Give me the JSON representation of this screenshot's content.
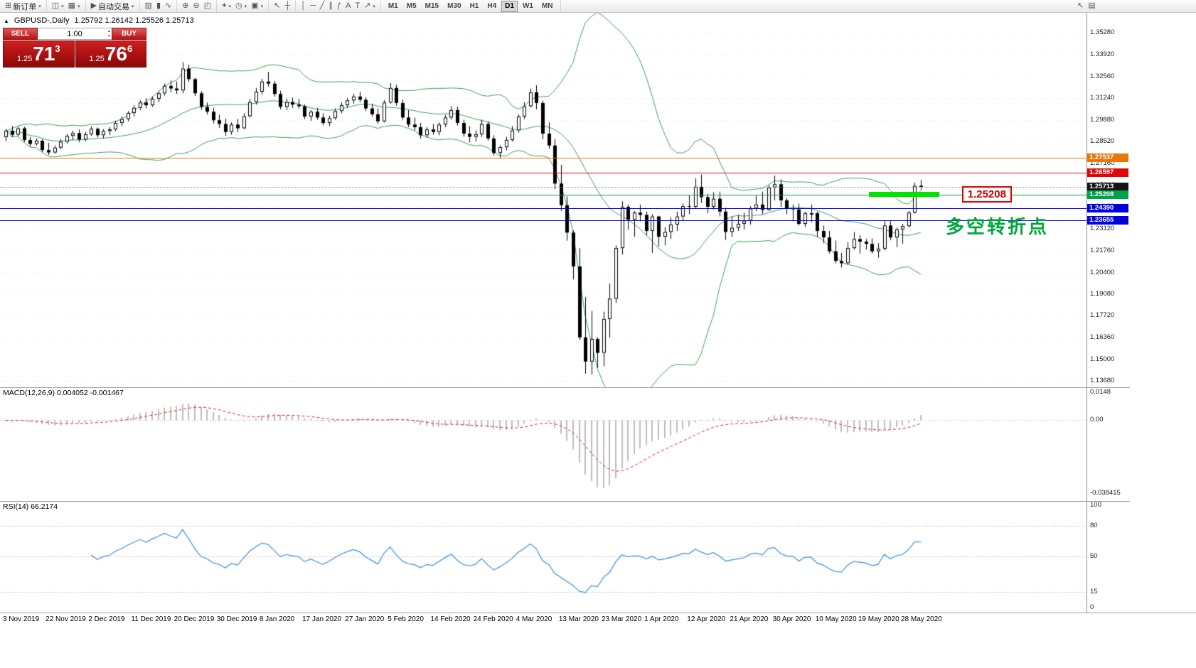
{
  "toolbar": {
    "groups": [
      {
        "name": "order-group",
        "items": [
          {
            "name": "new-order-button",
            "icon": "new-order-icon",
            "label": "新订单",
            "caret": true
          }
        ]
      },
      {
        "name": "window-group",
        "items": [
          {
            "name": "new-chart-button",
            "icon": "new-chart-icon",
            "caret": true
          },
          {
            "name": "profiles-button",
            "icon": "profiles-icon",
            "caret": true
          }
        ]
      },
      {
        "name": "autotrading-group",
        "items": [
          {
            "name": "autotrading-button",
            "icon": "autotrading-icon",
            "label": "自动交易",
            "caret": true
          }
        ]
      },
      {
        "name": "chart-type-group",
        "items": [
          {
            "name": "bar-chart-button",
            "icon": "bar-chart-icon"
          },
          {
            "name": "candlestick-button",
            "icon": "candlestick-icon"
          },
          {
            "name": "line-chart-button",
            "icon": "line-chart-icon"
          }
        ]
      },
      {
        "name": "zoom-group",
        "items": [
          {
            "name": "zoom-in-button",
            "icon": "zoom-in-icon"
          },
          {
            "name": "zoom-out-button",
            "icon": "zoom-out-icon"
          },
          {
            "name": "tile-windows-button",
            "icon": "tile-windows-icon"
          }
        ]
      },
      {
        "name": "insert-group",
        "items": [
          {
            "name": "indicators-button",
            "icon": "indicators-icon",
            "caret": true
          },
          {
            "name": "periods-button",
            "icon": "periods-icon",
            "caret": true
          },
          {
            "name": "templates-button",
            "icon": "templates-icon",
            "caret": true
          }
        ]
      },
      {
        "name": "cursor-group",
        "items": [
          {
            "name": "cursor-button",
            "icon": "cursor-icon"
          },
          {
            "name": "crosshair-button",
            "icon": "crosshair-icon"
          }
        ]
      },
      {
        "name": "draw-group",
        "items": [
          {
            "name": "vertical-line-button",
            "icon": "vline-icon"
          },
          {
            "name": "horizontal-line-button",
            "icon": "hline-icon"
          },
          {
            "name": "trendline-button",
            "icon": "trendline-icon"
          },
          {
            "name": "channel-button",
            "icon": "channel-icon"
          },
          {
            "name": "fibonacci-button",
            "icon": "fibonacci-icon"
          },
          {
            "name": "text-button",
            "icon": "text-icon"
          },
          {
            "name": "label-button",
            "icon": "label-icon"
          },
          {
            "name": "arrows-button",
            "icon": "arrows-icon",
            "caret": true
          }
        ]
      }
    ],
    "timeframes": {
      "items": [
        "M1",
        "M5",
        "M15",
        "M30",
        "H1",
        "H4",
        "D1",
        "W1",
        "MN"
      ],
      "active": "D1"
    },
    "right_items": [
      {
        "name": "help-pointer-button",
        "icon": "help-pointer-icon"
      },
      {
        "name": "snapshot-button",
        "icon": "camera-icon"
      }
    ]
  },
  "chart": {
    "title": {
      "symbol": "GBPUSD-,Daily",
      "ohlc": "1.25792 1.26142 1.25526 1.25713"
    },
    "one_click": {
      "sell_label": "SELL",
      "buy_label": "BUY",
      "volume": "1.00",
      "sell_price": {
        "int": "1.25",
        "big": "71",
        "sup": "3"
      },
      "buy_price": {
        "int": "1.25",
        "big": "76",
        "sup": "6"
      }
    },
    "x_labels": [
      "3 Nov 2019",
      "22 Nov 2019",
      "2 Dec 2019",
      "11 Dec 2019",
      "20 Dec 2019",
      "30 Dec 2019",
      "8 Jan 2020",
      "17 Jan 2020",
      "27 Jan 2020",
      "5 Feb 2020",
      "14 Feb 2020",
      "24 Feb 2020",
      "4 Mar 2020",
      "13 Mar 2020",
      "23 Mar 2020",
      "1 Apr 2020",
      "12 Apr 2020",
      "21 Apr 2020",
      "30 Apr 2020",
      "10 May 2020",
      "19 May 2020",
      "28 May 2020"
    ],
    "annotation": "多空转折点",
    "callout": "1.25208"
  },
  "macd": {
    "label": "MACD(12,26,9) 0.004052 -0.001467",
    "scale_labels": [
      {
        "v": 0.0148,
        "t": "0.0148"
      },
      {
        "v": 0,
        "t": "0.00"
      },
      {
        "v": -0.038415,
        "t": "-0.038415"
      }
    ]
  },
  "rsi": {
    "label": "RSI(14) 66.2174",
    "scale_labels": [
      {
        "v": 100,
        "t": "100"
      },
      {
        "v": 80,
        "t": "80"
      },
      {
        "v": 50,
        "t": "50"
      },
      {
        "v": 15,
        "t": "15"
      },
      {
        "v": 0,
        "t": "0"
      }
    ]
  },
  "chart_data": {
    "type": "candlestick",
    "symbol": "GBPUSD-",
    "timeframe": "Daily",
    "last_ohlc": {
      "open": 1.25792,
      "high": 1.26142,
      "low": 1.25526,
      "close": 1.25713
    },
    "y_range": [
      1.1368,
      1.3528
    ],
    "y_ticks": [
      1.3528,
      1.3392,
      1.3256,
      1.3124,
      1.2988,
      1.2852,
      1.2716,
      1.258,
      1.2448,
      1.2312,
      1.2176,
      1.204,
      1.1908,
      1.1772,
      1.1636,
      1.15,
      1.1368
    ],
    "overlays": [
      {
        "type": "bollinger_bands",
        "period": 20,
        "deviation": 2,
        "color": "#3c9e52"
      }
    ],
    "hlines": [
      {
        "name": "resistance-line-1",
        "price": 1.27537,
        "label": "1.27537",
        "color": "#e8780a",
        "tag_bg": "#e8780a",
        "style": "solid"
      },
      {
        "name": "resistance-line-2",
        "price": 1.26597,
        "label": "1.26597",
        "color": "#dd0808",
        "tag_bg": "#dd0808",
        "style": "solid"
      },
      {
        "name": "bid-price-line",
        "price": 1.25713,
        "label": "1.25713",
        "color": "#9a9a9a",
        "tag_bg": "#151515",
        "style": "dotted"
      },
      {
        "name": "support-line-green",
        "price": 1.25208,
        "label": "1.25208",
        "color": "#00a14b",
        "tag_bg": "#00a14b",
        "style": "solid"
      },
      {
        "name": "support-line-blue-1",
        "price": 1.2439,
        "label": "1.24390",
        "color": "#0000dd",
        "tag_bg": "#0000dd",
        "style": "solid"
      },
      {
        "name": "support-line-blue-2",
        "price": 1.23655,
        "label": "1.23655",
        "color": "#0000dd",
        "tag_bg": "#0000dd",
        "style": "solid"
      }
    ],
    "highlight_segment": {
      "price": 1.25208,
      "bar_start": 142,
      "bar_end": 153,
      "color": "#00e400"
    },
    "indicators": [
      {
        "type": "MACD",
        "fast": 12,
        "slow": 26,
        "signal": 9,
        "current_main": 0.004052,
        "current_signal": -0.001467,
        "scale": {
          "max": 0.0148,
          "min": -0.038415
        },
        "histogram_color": "#bdbdbd",
        "signal_color": "#e02020"
      },
      {
        "type": "RSI",
        "period": 14,
        "current": 66.2174,
        "levels": [
          80,
          50,
          15
        ],
        "scale": {
          "max": 100,
          "min": 0
        },
        "line_color": "#3a8fe0"
      }
    ],
    "candles": [
      [
        1.288,
        1.293,
        1.2855,
        1.292
      ],
      [
        1.292,
        1.295,
        1.288,
        1.2895
      ],
      [
        1.2895,
        1.2945,
        1.2885,
        1.2935
      ],
      [
        1.2935,
        1.2945,
        1.285,
        1.2862
      ],
      [
        1.2862,
        1.288,
        1.282,
        1.2838
      ],
      [
        1.2838,
        1.2872,
        1.2828,
        1.2858
      ],
      [
        1.2858,
        1.2868,
        1.2788,
        1.28
      ],
      [
        1.28,
        1.2845,
        1.277,
        1.2785
      ],
      [
        1.2785,
        1.2828,
        1.2778,
        1.2815
      ],
      [
        1.2815,
        1.2868,
        1.2805,
        1.2852
      ],
      [
        1.2852,
        1.2898,
        1.284,
        1.2888
      ],
      [
        1.2888,
        1.292,
        1.2862,
        1.2905
      ],
      [
        1.2905,
        1.2928,
        1.2848,
        1.2865
      ],
      [
        1.2865,
        1.2912,
        1.2855,
        1.2898
      ],
      [
        1.2898,
        1.2948,
        1.2888,
        1.2932
      ],
      [
        1.2932,
        1.294,
        1.2878,
        1.2892
      ],
      [
        1.2892,
        1.293,
        1.2872,
        1.2918
      ],
      [
        1.2918,
        1.2942,
        1.2893,
        1.2928
      ],
      [
        1.2928,
        1.2982,
        1.2918,
        1.2968
      ],
      [
        1.2968,
        1.3008,
        1.2948,
        1.2992
      ],
      [
        1.2992,
        1.3042,
        1.2978,
        1.303
      ],
      [
        1.303,
        1.3078,
        1.3008,
        1.3062
      ],
      [
        1.3062,
        1.3108,
        1.3048,
        1.3095
      ],
      [
        1.3095,
        1.3122,
        1.3058,
        1.3078
      ],
      [
        1.3078,
        1.3132,
        1.3068,
        1.3118
      ],
      [
        1.3118,
        1.3165,
        1.3098,
        1.3152
      ],
      [
        1.3152,
        1.3212,
        1.3138,
        1.3198
      ],
      [
        1.3198,
        1.3232,
        1.3158,
        1.3182
      ],
      [
        1.3182,
        1.3225,
        1.3148,
        1.317
      ],
      [
        1.317,
        1.3345,
        1.3152,
        1.3305
      ],
      [
        1.3305,
        1.333,
        1.3222,
        1.324
      ],
      [
        1.324,
        1.3248,
        1.3135,
        1.3152
      ],
      [
        1.3152,
        1.3165,
        1.305,
        1.3068
      ],
      [
        1.3068,
        1.3095,
        1.302,
        1.3038
      ],
      [
        1.3038,
        1.3062,
        1.2965,
        1.2985
      ],
      [
        1.2985,
        1.302,
        1.2938,
        1.2962
      ],
      [
        1.2962,
        1.2995,
        1.2888,
        1.2912
      ],
      [
        1.2912,
        1.2972,
        1.2895,
        1.2958
      ],
      [
        1.2958,
        1.2992,
        1.2912,
        1.2935
      ],
      [
        1.2935,
        1.3028,
        1.293,
        1.301
      ],
      [
        1.301,
        1.3118,
        1.3002,
        1.3098
      ],
      [
        1.3098,
        1.3185,
        1.3082,
        1.3162
      ],
      [
        1.3162,
        1.3242,
        1.3145,
        1.3225
      ],
      [
        1.3225,
        1.3285,
        1.3195,
        1.3212
      ],
      [
        1.3212,
        1.3228,
        1.3132,
        1.3148
      ],
      [
        1.3148,
        1.3168,
        1.3052,
        1.3068
      ],
      [
        1.3068,
        1.3118,
        1.3048,
        1.3098
      ],
      [
        1.3098,
        1.3125,
        1.3062,
        1.3082
      ],
      [
        1.3082,
        1.3118,
        1.3058,
        1.3072
      ],
      [
        1.3072,
        1.3082,
        1.2992,
        1.3008
      ],
      [
        1.3008,
        1.3048,
        1.2982,
        1.3038
      ],
      [
        1.3038,
        1.3062,
        1.2988,
        1.3002
      ],
      [
        1.3002,
        1.3028,
        1.2952,
        1.2968
      ],
      [
        1.2968,
        1.3012,
        1.2948,
        1.2998
      ],
      [
        1.2998,
        1.3058,
        1.2988,
        1.3042
      ],
      [
        1.3042,
        1.3095,
        1.3028,
        1.3078
      ],
      [
        1.3078,
        1.3122,
        1.3062,
        1.3108
      ],
      [
        1.3108,
        1.3148,
        1.3088,
        1.3132
      ],
      [
        1.3132,
        1.3162,
        1.3098,
        1.3112
      ],
      [
        1.3112,
        1.3128,
        1.3042,
        1.3058
      ],
      [
        1.3058,
        1.3088,
        1.3008,
        1.3022
      ],
      [
        1.3022,
        1.3058,
        1.2962,
        1.2978
      ],
      [
        1.2978,
        1.311,
        1.2972,
        1.3095
      ],
      [
        1.3095,
        1.3215,
        1.3088,
        1.3185
      ],
      [
        1.3185,
        1.3205,
        1.3075,
        1.3092
      ],
      [
        1.3092,
        1.3112,
        1.2988,
        1.3002
      ],
      [
        1.3002,
        1.3048,
        1.2942,
        1.2958
      ],
      [
        1.2958,
        1.3002,
        1.2922,
        1.2942
      ],
      [
        1.2942,
        1.2968,
        1.2872,
        1.2892
      ],
      [
        1.2892,
        1.2942,
        1.2876,
        1.2928
      ],
      [
        1.2928,
        1.2962,
        1.2895,
        1.2912
      ],
      [
        1.2912,
        1.2972,
        1.2892,
        1.2958
      ],
      [
        1.2958,
        1.3018,
        1.2942,
        1.3002
      ],
      [
        1.3002,
        1.3072,
        1.2988,
        1.3048
      ],
      [
        1.3048,
        1.3068,
        1.2952,
        1.2968
      ],
      [
        1.2968,
        1.2988,
        1.2882,
        1.2902
      ],
      [
        1.2902,
        1.2948,
        1.2848,
        1.2882
      ],
      [
        1.2882,
        1.2922,
        1.2852,
        1.2898
      ],
      [
        1.2898,
        1.2988,
        1.2882,
        1.2962
      ],
      [
        1.2962,
        1.2978,
        1.2858,
        1.2872
      ],
      [
        1.2872,
        1.2892,
        1.2766,
        1.2782
      ],
      [
        1.2782,
        1.2828,
        1.2748,
        1.2818
      ],
      [
        1.2818,
        1.2882,
        1.2798,
        1.2862
      ],
      [
        1.2862,
        1.2948,
        1.2852,
        1.2922
      ],
      [
        1.2922,
        1.3022,
        1.2908,
        1.3008
      ],
      [
        1.3008,
        1.3098,
        1.2992,
        1.3072
      ],
      [
        1.3072,
        1.3182,
        1.3062,
        1.3158
      ],
      [
        1.3158,
        1.3202,
        1.3052,
        1.3092
      ],
      [
        1.3092,
        1.3105,
        1.2868,
        1.2902
      ],
      [
        1.2902,
        1.2972,
        1.2808,
        1.2828
      ],
      [
        1.2828,
        1.2868,
        1.2558,
        1.2592
      ],
      [
        1.2592,
        1.2708,
        1.2422,
        1.2458
      ],
      [
        1.2458,
        1.2512,
        1.2238,
        1.2288
      ],
      [
        1.2288,
        1.2302,
        1.1998,
        1.2078
      ],
      [
        1.2078,
        1.2192,
        1.1622,
        1.1638
      ],
      [
        1.1638,
        1.1888,
        1.1412,
        1.1488
      ],
      [
        1.1488,
        1.1802,
        1.1408,
        1.1628
      ],
      [
        1.1628,
        1.1638,
        1.1448,
        1.1542
      ],
      [
        1.1542,
        1.1798,
        1.1458,
        1.1752
      ],
      [
        1.1752,
        1.1972,
        1.1638,
        1.1878
      ],
      [
        1.1878,
        1.2208,
        1.1852,
        1.2192
      ],
      [
        1.2192,
        1.2482,
        1.2152,
        1.2448
      ],
      [
        1.2448,
        1.2462,
        1.2308,
        1.2368
      ],
      [
        1.2368,
        1.2422,
        1.2262,
        1.2412
      ],
      [
        1.2412,
        1.2462,
        1.2358,
        1.2398
      ],
      [
        1.2398,
        1.2418,
        1.2272,
        1.2298
      ],
      [
        1.2298,
        1.2402,
        1.2162,
        1.2388
      ],
      [
        1.2388,
        1.2392,
        1.2202,
        1.2262
      ],
      [
        1.2262,
        1.2322,
        1.2208,
        1.2292
      ],
      [
        1.2292,
        1.2382,
        1.2248,
        1.2338
      ],
      [
        1.2338,
        1.2418,
        1.2298,
        1.2388
      ],
      [
        1.2388,
        1.2468,
        1.2362,
        1.2452
      ],
      [
        1.2452,
        1.2518,
        1.2402,
        1.2448
      ],
      [
        1.2448,
        1.2625,
        1.2438,
        1.2572
      ],
      [
        1.2572,
        1.2648,
        1.2472,
        1.2508
      ],
      [
        1.2508,
        1.2528,
        1.2408,
        1.2448
      ],
      [
        1.2448,
        1.2538,
        1.2432,
        1.2498
      ],
      [
        1.2498,
        1.2542,
        1.2388,
        1.2418
      ],
      [
        1.2418,
        1.2442,
        1.2242,
        1.2292
      ],
      [
        1.2292,
        1.2388,
        1.2262,
        1.2318
      ],
      [
        1.2318,
        1.2398,
        1.2298,
        1.2342
      ],
      [
        1.2342,
        1.2412,
        1.2308,
        1.2362
      ],
      [
        1.2362,
        1.2452,
        1.2338,
        1.2438
      ],
      [
        1.2438,
        1.2518,
        1.2422,
        1.2462
      ],
      [
        1.2462,
        1.2542,
        1.2402,
        1.2428
      ],
      [
        1.2428,
        1.2582,
        1.2422,
        1.2568
      ],
      [
        1.2568,
        1.2642,
        1.2488,
        1.2588
      ],
      [
        1.2588,
        1.2618,
        1.2448,
        1.2488
      ],
      [
        1.2488,
        1.2502,
        1.2402,
        1.2438
      ],
      [
        1.2438,
        1.2462,
        1.2358,
        1.2432
      ],
      [
        1.2432,
        1.2468,
        1.2332,
        1.2342
      ],
      [
        1.2342,
        1.2418,
        1.2322,
        1.2408
      ],
      [
        1.2408,
        1.2462,
        1.2352,
        1.2408
      ],
      [
        1.2408,
        1.2418,
        1.2262,
        1.2298
      ],
      [
        1.2298,
        1.2332,
        1.2222,
        1.2258
      ],
      [
        1.2258,
        1.2298,
        1.2158,
        1.2172
      ],
      [
        1.2172,
        1.2238,
        1.2098,
        1.2112
      ],
      [
        1.2112,
        1.2162,
        1.2072,
        1.2098
      ],
      [
        1.2098,
        1.2228,
        1.2092,
        1.2192
      ],
      [
        1.2192,
        1.2292,
        1.2182,
        1.2248
      ],
      [
        1.2248,
        1.2272,
        1.2158,
        1.2232
      ],
      [
        1.2232,
        1.2248,
        1.2182,
        1.2218
      ],
      [
        1.2218,
        1.2252,
        1.2158,
        1.2172
      ],
      [
        1.2172,
        1.2222,
        1.2132,
        1.2188
      ],
      [
        1.2188,
        1.2362,
        1.2178,
        1.2332
      ],
      [
        1.2332,
        1.2362,
        1.224,
        1.2258
      ],
      [
        1.2258,
        1.2318,
        1.2198,
        1.2308
      ],
      [
        1.2308,
        1.2342,
        1.2218,
        1.2328
      ],
      [
        1.2328,
        1.2422,
        1.2318,
        1.2412
      ],
      [
        1.2412,
        1.2598,
        1.2405,
        1.2578
      ],
      [
        1.25792,
        1.26142,
        1.25526,
        1.25713
      ]
    ]
  }
}
